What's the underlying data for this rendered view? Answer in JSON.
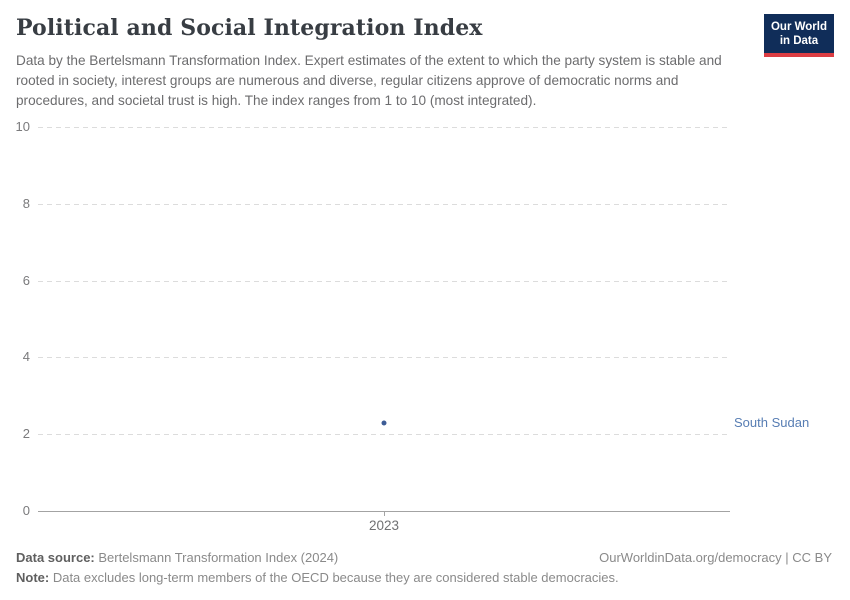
{
  "header": {
    "title": "Political and Social Integration Index",
    "subtitle": "Data by the Bertelsmann Transformation Index. Expert estimates of the extent to which the party system is stable and rooted in society, interest groups are numerous and diverse, regular citizens approve of democratic norms and procedures, and societal trust is high. The index ranges from 1 to 10 (most integrated).",
    "logo": {
      "line1": "Our World",
      "line2": "in Data",
      "background_color": "#102d59",
      "accent_color": "#dc3d43"
    }
  },
  "chart_data": {
    "type": "scatter",
    "title": "Political and Social Integration Index",
    "x": [
      2023
    ],
    "xticks": [
      "2023"
    ],
    "series": [
      {
        "name": "South Sudan",
        "values": [
          2.3
        ],
        "point_color": "#3d5c96",
        "label_color": "#577db3"
      }
    ],
    "xlabel": "",
    "ylabel": "",
    "ylim": [
      0,
      10
    ],
    "yticks": [
      0,
      2,
      4,
      6,
      8,
      10
    ],
    "grid": "horizontal dashed",
    "legend_position": "right of point"
  },
  "footer": {
    "source_label": "Data source:",
    "source_text": " Bertelsmann Transformation Index (2024)",
    "rights": "OurWorldinData.org/democracy | CC BY",
    "note_label": "Note:",
    "note_text": " Data excludes long-term members of the OECD because they are considered stable democracies."
  }
}
